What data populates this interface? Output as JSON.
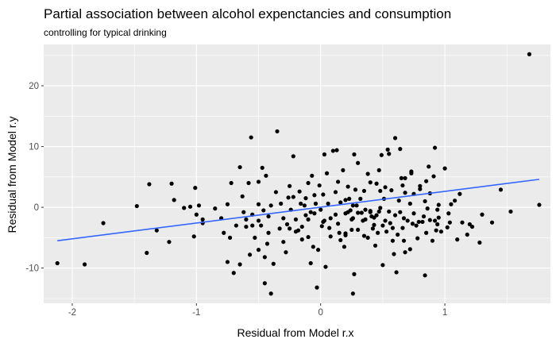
{
  "chart_data": {
    "type": "scatter",
    "title": "Partial association between alcohol expenctancies and consumption",
    "subtitle": "controlling for typical drinking",
    "xlabel": "Residual from Model r.x",
    "ylabel": "Residual from Model r.y",
    "xlim": [
      -2.23,
      1.85
    ],
    "ylim": [
      -15.8,
      26.8
    ],
    "x_ticks": [
      -2,
      -1,
      0,
      1
    ],
    "x_tick_labels": [
      "-2",
      "-1",
      "0",
      "1"
    ],
    "y_ticks": [
      -10,
      0,
      10,
      20
    ],
    "y_tick_labels": [
      "-10",
      "0",
      "10",
      "20"
    ],
    "grid": true,
    "background": "#ebebeb",
    "grid_color": "#ffffff",
    "point_color": "#000000",
    "line_color": "#3366ff",
    "fit_line": {
      "x": [
        -2.12,
        1.76
      ],
      "y": [
        -5.5,
        4.6
      ]
    },
    "points": [
      [
        -2.12,
        -9.2
      ],
      [
        -1.9,
        -9.4
      ],
      [
        -1.75,
        -2.6
      ],
      [
        -1.48,
        0.2
      ],
      [
        -1.4,
        -7.5
      ],
      [
        -1.38,
        3.8
      ],
      [
        -1.32,
        -3.8
      ],
      [
        -1.22,
        -5.7
      ],
      [
        -1.2,
        3.9
      ],
      [
        -1.18,
        1.2
      ],
      [
        -1.1,
        -0.1
      ],
      [
        -1.05,
        0.1
      ],
      [
        -1.02,
        -4.8
      ],
      [
        -1.01,
        3.2
      ],
      [
        -1.0,
        -1.2
      ],
      [
        -0.98,
        0.3
      ],
      [
        -0.95,
        -2.0
      ],
      [
        -0.95,
        -2.6
      ],
      [
        -0.85,
        -0.2
      ],
      [
        -0.8,
        -1.8
      ],
      [
        -0.78,
        -4.2
      ],
      [
        -0.75,
        -9.0
      ],
      [
        -0.75,
        0.5
      ],
      [
        -0.73,
        -5.0
      ],
      [
        -0.72,
        4.0
      ],
      [
        -0.7,
        -10.8
      ],
      [
        -0.68,
        -3.0
      ],
      [
        -0.65,
        -9.4
      ],
      [
        -0.63,
        1.8
      ],
      [
        -0.62,
        -0.8
      ],
      [
        -0.6,
        -2.0
      ],
      [
        -0.6,
        -3.2
      ],
      [
        -0.58,
        4.0
      ],
      [
        -0.57,
        -7.8
      ],
      [
        -0.56,
        11.5
      ],
      [
        -0.55,
        -1.2
      ],
      [
        -0.55,
        -3.0
      ],
      [
        -0.53,
        -5.0
      ],
      [
        -0.5,
        4.2
      ],
      [
        -0.5,
        0.5
      ],
      [
        -0.5,
        -7.0
      ],
      [
        -0.5,
        -2.2
      ],
      [
        -0.48,
        -3.0
      ],
      [
        -0.47,
        6.5
      ],
      [
        -0.46,
        -0.5
      ],
      [
        -0.45,
        -8.2
      ],
      [
        -0.45,
        -12.5
      ],
      [
        -0.44,
        5.2
      ],
      [
        -0.43,
        -6.0
      ],
      [
        -0.42,
        -4.2
      ],
      [
        -0.42,
        -1.5
      ],
      [
        -0.4,
        -14.2
      ],
      [
        -0.4,
        0.3
      ],
      [
        -0.38,
        -9.3
      ],
      [
        -0.36,
        2.5
      ],
      [
        -0.35,
        12.5
      ],
      [
        -0.33,
        -3.5
      ],
      [
        -0.32,
        0.6
      ],
      [
        -0.3,
        -5.7
      ],
      [
        -0.3,
        -1.8
      ],
      [
        -0.28,
        -7.4
      ],
      [
        -0.26,
        1.6
      ],
      [
        -0.25,
        3.5
      ],
      [
        -0.25,
        -3.5
      ],
      [
        -0.24,
        -0.4
      ],
      [
        -0.22,
        8.4
      ],
      [
        -0.22,
        1.7
      ],
      [
        -0.2,
        -2.0
      ],
      [
        -0.2,
        -4.0
      ],
      [
        -0.18,
        -3.8
      ],
      [
        -0.17,
        2.6
      ],
      [
        -0.16,
        0.6
      ],
      [
        -0.15,
        -3.2
      ],
      [
        -0.15,
        -5.3
      ],
      [
        -0.13,
        0.3
      ],
      [
        -0.12,
        1.5
      ],
      [
        -0.12,
        -1.3
      ],
      [
        -0.1,
        4.0
      ],
      [
        -0.1,
        -2.0
      ],
      [
        -0.1,
        -4.9
      ],
      [
        -0.08,
        -9.2
      ],
      [
        -0.07,
        5.2
      ],
      [
        -0.06,
        -6.5
      ],
      [
        -0.05,
        -1.0
      ],
      [
        -0.05,
        2.0
      ],
      [
        -0.04,
        0.6
      ],
      [
        -0.03,
        -13.2
      ],
      [
        -0.02,
        -7.0
      ],
      [
        -0.01,
        3.6
      ],
      [
        0.0,
        -0.4
      ],
      [
        0.01,
        -3.1
      ],
      [
        0.02,
        -2.4
      ],
      [
        0.02,
        2.1
      ],
      [
        0.03,
        -2.2
      ],
      [
        0.04,
        -9.8
      ],
      [
        0.05,
        5.6
      ],
      [
        0.06,
        0.6
      ],
      [
        0.08,
        -4.8
      ],
      [
        0.08,
        -1.8
      ],
      [
        0.1,
        9.3
      ],
      [
        0.12,
        -1.2
      ],
      [
        0.12,
        2.5
      ],
      [
        0.13,
        9.4
      ],
      [
        0.14,
        -2.7
      ],
      [
        0.15,
        -4.2
      ],
      [
        0.16,
        0.8
      ],
      [
        0.18,
        6.1
      ],
      [
        0.19,
        -6.5
      ],
      [
        0.2,
        -4.6
      ],
      [
        0.2,
        1.2
      ],
      [
        0.2,
        -1.0
      ],
      [
        0.22,
        3.4
      ],
      [
        0.22,
        -0.8
      ],
      [
        0.23,
        1.4
      ],
      [
        0.24,
        -0.5
      ],
      [
        0.25,
        -2.0
      ],
      [
        0.25,
        -3.7
      ],
      [
        0.26,
        0.3
      ],
      [
        0.26,
        -14.2
      ],
      [
        0.27,
        -11.0
      ],
      [
        0.27,
        8.7
      ],
      [
        0.28,
        2.9
      ],
      [
        0.29,
        0.3
      ],
      [
        0.3,
        -3.7
      ],
      [
        0.3,
        7.3
      ],
      [
        0.3,
        -0.9
      ],
      [
        0.32,
        1.4
      ],
      [
        0.34,
        -2.2
      ],
      [
        0.35,
        2.7
      ],
      [
        0.35,
        -4.7
      ],
      [
        0.36,
        -0.4
      ],
      [
        0.36,
        -2.0
      ],
      [
        0.38,
        -5.0
      ],
      [
        0.38,
        5.5
      ],
      [
        0.4,
        4.1
      ],
      [
        0.4,
        -0.6
      ],
      [
        0.41,
        -1.5
      ],
      [
        0.42,
        -3.5
      ],
      [
        0.43,
        -2.9
      ],
      [
        0.44,
        -6.3
      ],
      [
        0.45,
        3.9
      ],
      [
        0.45,
        -1.3
      ],
      [
        0.46,
        -4.2
      ],
      [
        0.47,
        6.1
      ],
      [
        0.48,
        2.7
      ],
      [
        0.48,
        -0.1
      ],
      [
        0.49,
        8.6
      ],
      [
        0.5,
        -3.0
      ],
      [
        0.5,
        -9.5
      ],
      [
        0.51,
        1.4
      ],
      [
        0.52,
        -2.2
      ],
      [
        0.52,
        3.3
      ],
      [
        0.53,
        -4.0
      ],
      [
        0.54,
        9.5
      ],
      [
        0.55,
        8.8
      ],
      [
        0.55,
        -0.7
      ],
      [
        0.56,
        -2.6
      ],
      [
        0.57,
        2.8
      ],
      [
        0.58,
        -3.4
      ],
      [
        0.6,
        11.4
      ],
      [
        0.6,
        -1.3
      ],
      [
        0.62,
        -4.5
      ],
      [
        0.63,
        1.1
      ],
      [
        0.64,
        9.6
      ],
      [
        0.64,
        -0.8
      ],
      [
        0.65,
        4.8
      ],
      [
        0.66,
        3.6
      ],
      [
        0.66,
        -3.4
      ],
      [
        0.67,
        -1.8
      ],
      [
        0.68,
        2.4
      ],
      [
        0.68,
        -7.4
      ],
      [
        0.7,
        -2.2
      ],
      [
        0.72,
        0.6
      ],
      [
        0.72,
        -6.9
      ],
      [
        0.73,
        5.9
      ],
      [
        0.74,
        -2.7
      ],
      [
        0.75,
        2.2
      ],
      [
        0.75,
        -1.0
      ],
      [
        0.77,
        -3.0
      ],
      [
        0.78,
        -5.1
      ],
      [
        0.79,
        -2.4
      ],
      [
        0.8,
        3.5
      ],
      [
        0.82,
        -2.4
      ],
      [
        0.83,
        -1.5
      ],
      [
        0.84,
        1.0
      ],
      [
        0.85,
        -4.2
      ],
      [
        0.86,
        -0.2
      ],
      [
        0.87,
        6.7
      ],
      [
        0.88,
        -2.1
      ],
      [
        0.88,
        2.3
      ],
      [
        0.9,
        -5.5
      ],
      [
        0.91,
        5.1
      ],
      [
        0.92,
        9.8
      ],
      [
        0.93,
        -3.8
      ],
      [
        0.94,
        -0.4
      ],
      [
        0.95,
        0.4
      ],
      [
        0.95,
        -1.7
      ],
      [
        0.97,
        -4.0
      ],
      [
        1.0,
        6.4
      ],
      [
        1.02,
        -3.3
      ],
      [
        1.03,
        -1.0
      ],
      [
        1.04,
        -2.5
      ],
      [
        1.05,
        0.5
      ],
      [
        1.08,
        1.1
      ],
      [
        1.1,
        -5.3
      ],
      [
        1.12,
        2.2
      ],
      [
        1.14,
        -2.5
      ],
      [
        1.18,
        -4.5
      ],
      [
        1.2,
        -2.8
      ],
      [
        1.22,
        -3.2
      ],
      [
        1.28,
        -5.8
      ],
      [
        1.3,
        -1.2
      ],
      [
        1.38,
        -2.5
      ],
      [
        1.45,
        2.9
      ],
      [
        1.53,
        -0.7
      ],
      [
        1.68,
        25.2
      ],
      [
        1.76,
        0.4
      ],
      [
        0.03,
        8.7
      ],
      [
        -0.65,
        6.6
      ],
      [
        0.73,
        5.6
      ],
      [
        0.33,
        -0.9
      ],
      [
        -0.27,
        -2.8
      ],
      [
        0.59,
        -7.7
      ],
      [
        0.16,
        -5.4
      ],
      [
        -0.08,
        -0.8
      ],
      [
        0.61,
        -10.7
      ],
      [
        0.84,
        -11.2
      ],
      [
        0.07,
        -3.4
      ],
      [
        0.92,
        -2.2
      ],
      [
        0.2,
        -4.3
      ],
      [
        0.58,
        -5.5
      ],
      [
        0.67,
        -5.5
      ],
      [
        0.94,
        -2.8
      ],
      [
        0.26,
        -1.8
      ],
      [
        0.43,
        -1.7
      ],
      [
        0.14,
        4.2
      ],
      [
        0.68,
        4.8
      ],
      [
        0.8,
        3.0
      ],
      [
        0.85,
        4.3
      ],
      [
        0.47,
        -0.7
      ],
      [
        0.4,
        -0.8
      ]
    ]
  }
}
